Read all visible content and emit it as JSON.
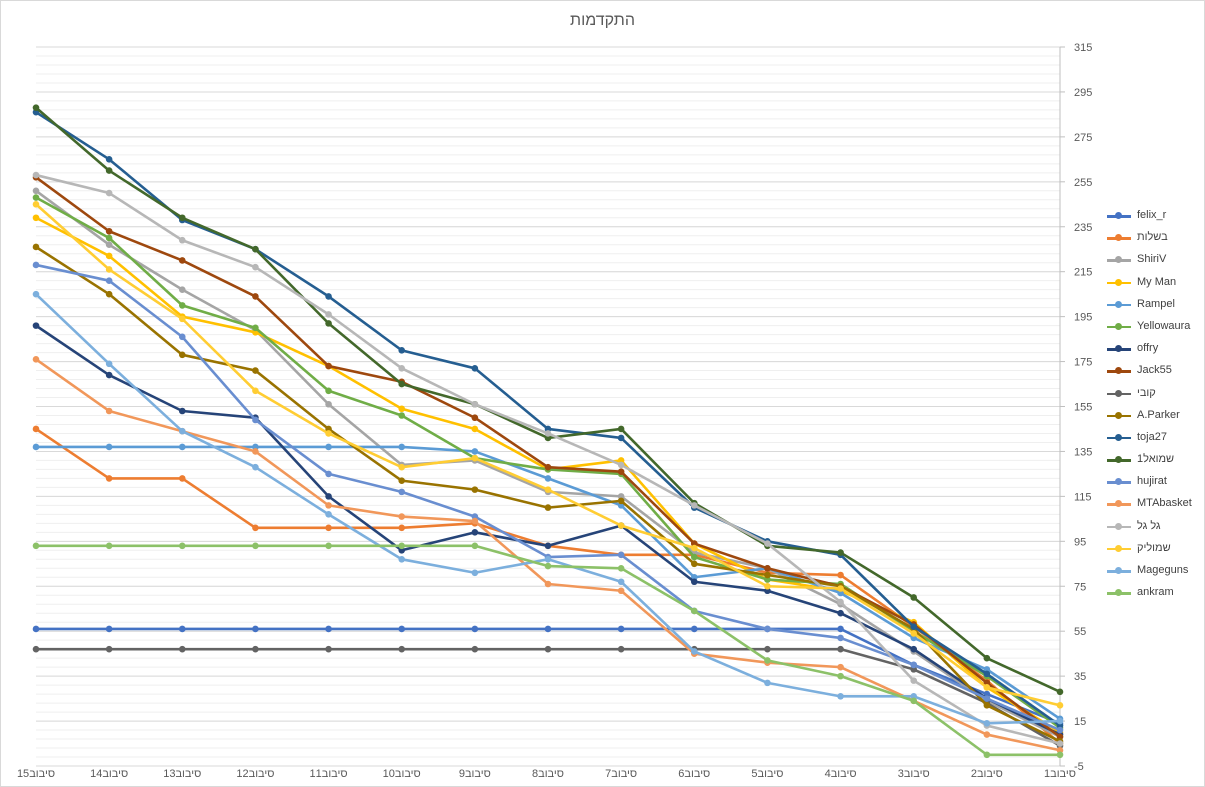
{
  "chart_data": {
    "type": "line",
    "title": "התקדמות",
    "categories": [
      "סיבוב15",
      "סיבוב14",
      "סיבוב13",
      "סיבוב12",
      "סיבוב11",
      "סיבוב10",
      "סיבוב9",
      "סיבוב8",
      "סיבוב7",
      "סיבוב6",
      "סיבוב5",
      "סיבוב4",
      "סיבוב3",
      "סיבוב2",
      "סיבוב1"
    ],
    "ylim": [
      -5,
      315
    ],
    "y_axis_side": "right",
    "yticks": [
      -5,
      15,
      35,
      55,
      75,
      95,
      115,
      135,
      155,
      175,
      195,
      215,
      235,
      255,
      275,
      295,
      315
    ],
    "minor_grid_step": 4,
    "grid": true,
    "legend_position": "right",
    "series": [
      {
        "name": "felix_r",
        "color": "#4472c4",
        "values": [
          56,
          56,
          56,
          56,
          56,
          56,
          56,
          56,
          56,
          56,
          56,
          56,
          40,
          27,
          14
        ]
      },
      {
        "name": "בשלות",
        "color": "#ed7d31",
        "values": [
          145,
          123,
          123,
          101,
          101,
          101,
          103,
          93,
          89,
          89,
          81,
          80,
          57,
          33,
          5
        ]
      },
      {
        "name": "ShiriV",
        "color": "#a5a5a5",
        "values": [
          251,
          227,
          207,
          189,
          156,
          129,
          131,
          117,
          115,
          90,
          83,
          67,
          46,
          24,
          8
        ]
      },
      {
        "name": "My Man",
        "color": "#ffc000",
        "values": [
          239,
          222,
          195,
          188,
          173,
          154,
          145,
          127,
          131,
          94,
          78,
          73,
          59,
          30,
          10
        ]
      },
      {
        "name": "Rampel",
        "color": "#5b9bd5",
        "values": [
          137,
          137,
          137,
          137,
          137,
          137,
          135,
          123,
          111,
          79,
          83,
          72,
          52,
          38,
          16
        ]
      },
      {
        "name": "Yellowaura",
        "color": "#70ad47",
        "values": [
          248,
          230,
          200,
          190,
          162,
          151,
          132,
          127,
          125,
          88,
          78,
          76,
          55,
          35,
          12
        ]
      },
      {
        "name": "offry",
        "color": "#264478",
        "values": [
          191,
          169,
          153,
          150,
          115,
          91,
          99,
          93,
          102,
          77,
          73,
          63,
          47,
          25,
          9
        ]
      },
      {
        "name": "Jack55",
        "color": "#9e480e",
        "values": [
          257,
          233,
          220,
          204,
          173,
          166,
          150,
          128,
          126,
          94,
          83,
          75,
          58,
          32,
          8
        ]
      },
      {
        "name": "קובי",
        "color": "#636363",
        "values": [
          47,
          47,
          47,
          47,
          47,
          47,
          47,
          47,
          47,
          47,
          47,
          47,
          38,
          23,
          4
        ]
      },
      {
        "name": "A.Parker",
        "color": "#997300",
        "values": [
          226,
          205,
          178,
          171,
          145,
          122,
          118,
          110,
          113,
          85,
          80,
          75,
          56,
          22,
          6
        ]
      },
      {
        "name": "toja27",
        "color": "#255e91",
        "values": [
          286,
          265,
          238,
          225,
          204,
          180,
          172,
          145,
          141,
          110,
          95,
          89,
          57,
          36,
          13
        ]
      },
      {
        "name": "שמואל1",
        "color": "#43682b",
        "values": [
          288,
          260,
          239,
          225,
          192,
          165,
          156,
          141,
          145,
          112,
          93,
          90,
          70,
          43,
          28
        ]
      },
      {
        "name": "hujirat",
        "color": "#698ed0",
        "values": [
          218,
          211,
          186,
          149,
          125,
          117,
          106,
          88,
          89,
          64,
          56,
          52,
          40,
          25,
          11
        ]
      },
      {
        "name": "MTAbasket",
        "color": "#f1975a",
        "values": [
          176,
          153,
          144,
          135,
          111,
          106,
          104,
          76,
          73,
          45,
          41,
          39,
          24,
          9,
          2
        ]
      },
      {
        "name": "גל גל",
        "color": "#b7b7b7",
        "values": [
          258,
          250,
          229,
          217,
          196,
          172,
          156,
          143,
          129,
          111,
          94,
          68,
          33,
          13,
          5
        ]
      },
      {
        "name": "שמוליק",
        "color": "#ffcd33",
        "values": [
          245,
          216,
          194,
          162,
          143,
          128,
          132,
          118,
          102,
          92,
          75,
          74,
          54,
          30,
          22
        ]
      },
      {
        "name": "Mageguns",
        "color": "#7cafdd",
        "values": [
          205,
          174,
          144,
          128,
          107,
          87,
          81,
          87,
          77,
          46,
          32,
          26,
          26,
          14,
          15
        ]
      },
      {
        "name": "ankram",
        "color": "#8cc168",
        "values": [
          93,
          93,
          93,
          93,
          93,
          93,
          93,
          84,
          83,
          64,
          42,
          35,
          24,
          0,
          0
        ]
      }
    ]
  }
}
